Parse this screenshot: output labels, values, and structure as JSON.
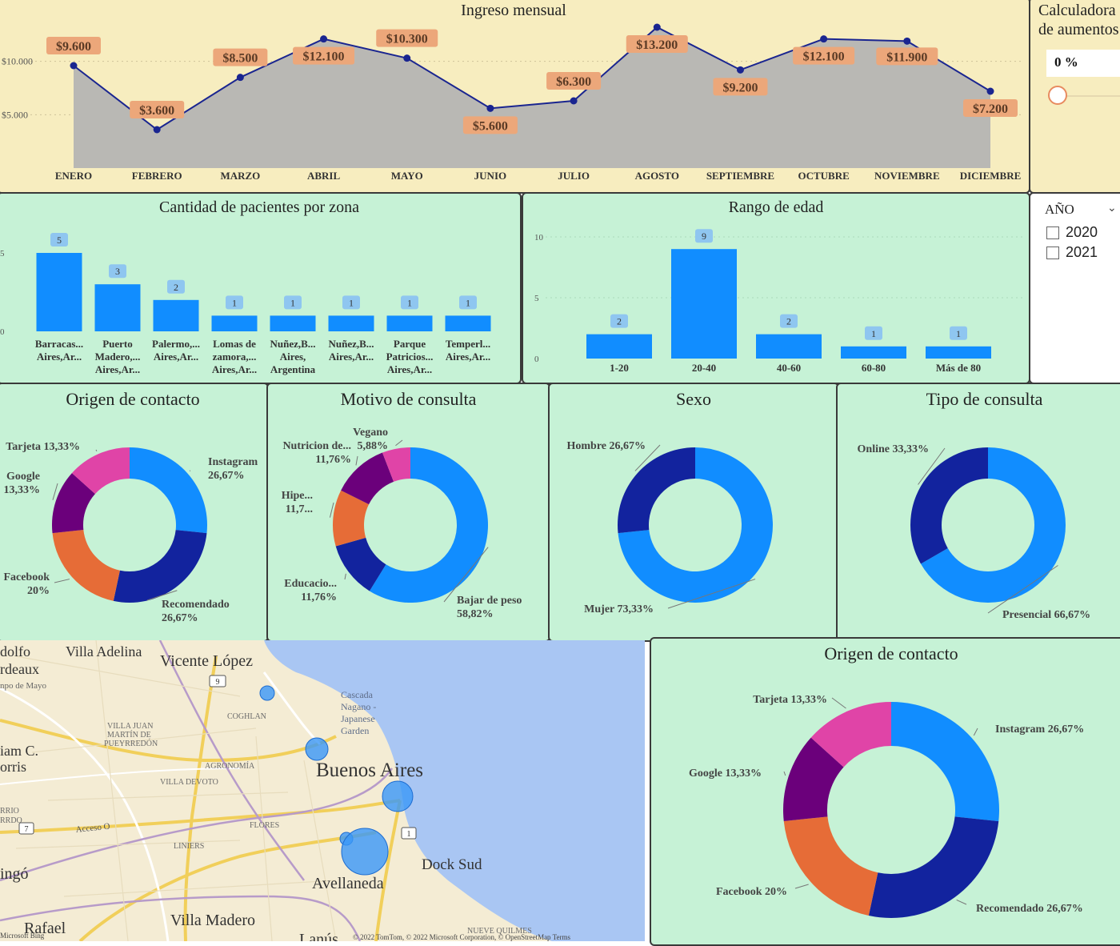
{
  "income": {
    "title": "Ingreso mensual",
    "y_ticks": [
      "$5.000",
      "$10.000"
    ],
    "chart_data": {
      "type": "line",
      "title": "Ingreso mensual",
      "categories": [
        "ENERO",
        "FEBRERO",
        "MARZO",
        "ABRIL",
        "MAYO",
        "JUNIO",
        "JULIO",
        "AGOSTO",
        "SEPTIEMBRE",
        "OCTUBRE",
        "NOVIEMBRE",
        "DICIEMBRE"
      ],
      "values": [
        9600,
        3600,
        8500,
        12100,
        10300,
        5600,
        6300,
        13200,
        9200,
        12100,
        11900,
        7200
      ],
      "labels": [
        "$9.600",
        "$3.600",
        "$8.500",
        "$12.100",
        "$10.300",
        "$5.600",
        "$6.300",
        "$13.200",
        "$9.200",
        "$12.100",
        "$11.900",
        "$7.200"
      ],
      "ylim": [
        0,
        15000
      ],
      "colors": {
        "line": "#1a2590",
        "area": "#b9b8b4",
        "label_bg": "#eca77a"
      }
    }
  },
  "calc": {
    "title_line1": "Calculadora",
    "title_line2": "de aumentos",
    "value": "0 %"
  },
  "zones": {
    "title": "Cantidad de pacientes por zona",
    "y_ticks": [
      "5",
      "0"
    ],
    "chart_data": {
      "type": "bar",
      "title": "Cantidad de pacientes por zona",
      "categories": [
        [
          "Barracas...",
          "Aires,Ar..."
        ],
        [
          "Puerto",
          "Madero,...",
          "Aires,Ar..."
        ],
        [
          "Palermo,...",
          "Aires,Ar..."
        ],
        [
          "Lomas de",
          "zamora,...",
          "Aires,Ar..."
        ],
        [
          "Nuñez,B...",
          "Aires,",
          "Argentina"
        ],
        [
          "Nuñez,B...",
          "Aires,Ar..."
        ],
        [
          "Parque",
          "Patricios...",
          "Aires,Ar..."
        ],
        [
          "Temperl...",
          "Aires,Ar..."
        ]
      ],
      "values": [
        5,
        3,
        2,
        1,
        1,
        1,
        1,
        1
      ],
      "ylim": [
        0,
        6
      ],
      "color": "#118dff"
    }
  },
  "ages": {
    "title": "Rango de edad",
    "y_ticks": [
      "10",
      "5",
      "0"
    ],
    "chart_data": {
      "type": "bar",
      "title": "Rango de edad",
      "categories": [
        "1-20",
        "20-40",
        "40-60",
        "60-80",
        "Más de 80"
      ],
      "values": [
        2,
        9,
        2,
        1,
        1
      ],
      "ylim": [
        0,
        10
      ],
      "color": "#118dff"
    }
  },
  "year": {
    "title": "AÑO",
    "options": [
      "2020",
      "2021"
    ]
  },
  "donuts": {
    "origin": {
      "title": "Origen de contacto",
      "chart_data": {
        "type": "pie",
        "title": "Origen de contacto",
        "slices": [
          {
            "name": "Instagram",
            "value": 26.67,
            "label1": "Instagram",
            "label2": "26,67%",
            "color": "#118dff"
          },
          {
            "name": "Recomendado",
            "value": 26.67,
            "label1": "Recomendado",
            "label2": "26,67%",
            "color": "#12239e"
          },
          {
            "name": "Facebook",
            "value": 20,
            "label1": "Facebook",
            "label2": "20%",
            "color": "#e66c37"
          },
          {
            "name": "Google",
            "value": 13.33,
            "label1": "Google",
            "label2": "13,33%",
            "color": "#6b007b"
          },
          {
            "name": "Tarjeta",
            "value": 13.33,
            "label1": "Tarjeta 13,33%",
            "label2": "",
            "color": "#e044a7"
          }
        ]
      }
    },
    "motivo": {
      "title": "Motivo de consulta",
      "chart_data": {
        "type": "pie",
        "title": "Motivo de consulta",
        "slices": [
          {
            "name": "Bajar de peso",
            "value": 58.82,
            "label1": "Bajar de peso",
            "label2": "58,82%",
            "color": "#118dff"
          },
          {
            "name": "Educacio...",
            "value": 11.76,
            "label1": "Educacio...",
            "label2": "11,76%",
            "color": "#12239e"
          },
          {
            "name": "Hipe...",
            "value": 11.76,
            "label1": "Hipe...",
            "label2": "11,7...",
            "color": "#e66c37"
          },
          {
            "name": "Nutricion de...",
            "value": 11.76,
            "label1": "Nutricion de...",
            "label2": "11,76%",
            "color": "#6b007b"
          },
          {
            "name": "Vegano",
            "value": 5.88,
            "label1": "Vegano",
            "label2": "5,88%",
            "color": "#e044a7"
          }
        ]
      }
    },
    "sexo": {
      "title": "Sexo",
      "chart_data": {
        "type": "pie",
        "title": "Sexo",
        "slices": [
          {
            "name": "Mujer",
            "value": 73.33,
            "label1": "Mujer 73,33%",
            "label2": "",
            "color": "#118dff"
          },
          {
            "name": "Hombre",
            "value": 26.67,
            "label1": "Hombre 26,67%",
            "label2": "",
            "color": "#12239e"
          }
        ]
      }
    },
    "tipo": {
      "title": "Tipo de consulta",
      "chart_data": {
        "type": "pie",
        "title": "Tipo de consulta",
        "slices": [
          {
            "name": "Presencial",
            "value": 66.67,
            "label1": "Presencial 66,67%",
            "label2": "",
            "color": "#118dff"
          },
          {
            "name": "Online",
            "value": 33.33,
            "label1": "Online 33,33%",
            "label2": "",
            "color": "#12239e"
          }
        ]
      }
    },
    "origin2": {
      "title": "Origen de contacto",
      "chart_data": {
        "type": "pie",
        "title": "Origen de contacto",
        "slices": [
          {
            "name": "Instagram",
            "value": 26.67,
            "label1": "Instagram 26,67%",
            "label2": "",
            "color": "#118dff"
          },
          {
            "name": "Recomendado",
            "value": 26.67,
            "label1": "Recomendado 26,67%",
            "label2": "",
            "color": "#12239e"
          },
          {
            "name": "Facebook",
            "value": 20,
            "label1": "Facebook 20%",
            "label2": "",
            "color": "#e66c37"
          },
          {
            "name": "Google",
            "value": 13.33,
            "label1": "Google 13,33%",
            "label2": "",
            "color": "#6b007b"
          },
          {
            "name": "Tarjeta",
            "value": 13.33,
            "label1": "Tarjeta 13,33%",
            "label2": "",
            "color": "#e044a7"
          }
        ]
      }
    }
  },
  "map": {
    "places": {
      "villa_adelina": "Villa Adelina",
      "vicente_lopez": "Vicente López",
      "dolfo": "dolfo",
      "rdeaux": "rdeaux",
      "npo_de_mayo": "npo de Mayo",
      "coghlan": "COGHLAN",
      "cascada1": "Cascada",
      "cascada2": "Nagano -",
      "cascada3": "Japanese",
      "cascada4": "Garden",
      "villa_juan1": "VILLA JUAN",
      "villa_juan2": "MARTÍN DE",
      "villa_juan3": "PUEYRREDÓN",
      "iam": "iam C.",
      "orris": "orris",
      "agronomia": "AGRONOMÍA",
      "villa_devoto": "VILLA DEVOTO",
      "buenos_aires": "Buenos Aires",
      "rrio": "RRIO",
      "rrdo": "RRDO",
      "acceso": "Acceso O",
      "flores": "FLORES",
      "liniers": "LINIERS",
      "dock_sud": "Dock Sud",
      "avellaneda": "Avellaneda",
      "ingo": "ingó",
      "rafael": "Rafael",
      "villa_madero": "Villa Madero",
      "nueve_quilmes": "NUEVE QUILMES",
      "lanus": "Lanús"
    },
    "road_9": "9",
    "road_1": "1",
    "road_7": "7",
    "attribution": "© 2022 TomTom, © 2022 Microsoft Corporation, © OpenStreetMap  Terms",
    "bing": "Microsoft Bing",
    "bubbles": [
      {
        "name": "Vicente López",
        "patients": 1
      },
      {
        "name": "Palermo",
        "patients": 2
      },
      {
        "name": "Puerto Madero",
        "patients": 3
      },
      {
        "name": "Parque Patricios",
        "patients": 1
      },
      {
        "name": "Barracas",
        "patients": 5
      }
    ]
  }
}
